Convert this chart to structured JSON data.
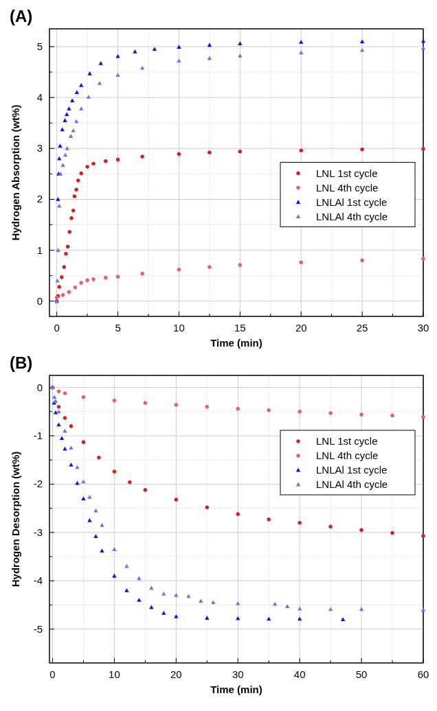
{
  "chart_data": [
    {
      "type": "scatter",
      "title": "(A)",
      "xlabel": "Time (min)",
      "ylabel": "Hydrogen Absorption (wt%)",
      "xlim": [
        -0.6,
        30
      ],
      "ylim": [
        -0.3,
        5.35
      ],
      "xticks": [
        0,
        5,
        10,
        15,
        20,
        25,
        30
      ],
      "yticks": [
        0,
        1,
        2,
        3,
        4,
        5
      ],
      "grid": true,
      "legend": "right",
      "series": [
        {
          "name": "LNL 1st cycle",
          "color": "#d42020",
          "marker": "circle",
          "x": [
            0,
            0.1,
            0.2,
            0.4,
            0.6,
            0.75,
            0.9,
            1.05,
            1.2,
            1.35,
            1.45,
            1.6,
            1.75,
            2,
            2.5,
            3,
            4,
            5,
            7,
            10,
            12.5,
            15,
            20,
            25,
            30
          ],
          "values": [
            0,
            0.1,
            0.28,
            0.47,
            0.67,
            0.93,
            1.07,
            1.36,
            1.63,
            1.78,
            2.06,
            2.19,
            2.37,
            2.51,
            2.64,
            2.7,
            2.75,
            2.78,
            2.84,
            2.89,
            2.92,
            2.94,
            2.96,
            2.98,
            2.99
          ]
        },
        {
          "name": "LNL 4th cycle",
          "color": "#e86060",
          "marker": "circle",
          "x": [
            0,
            0.5,
            1,
            1.5,
            2,
            2.5,
            3,
            4,
            5,
            7,
            10,
            12.5,
            15,
            20,
            25,
            30
          ],
          "values": [
            0.07,
            0.12,
            0.18,
            0.27,
            0.36,
            0.41,
            0.43,
            0.46,
            0.48,
            0.54,
            0.62,
            0.67,
            0.71,
            0.76,
            0.8,
            0.83
          ]
        },
        {
          "name": "LNLAl 1st cycle",
          "color": "#1010e8",
          "marker": "triangle",
          "x": [
            0,
            0.1,
            0.15,
            0.2,
            0.27,
            0.45,
            0.67,
            0.82,
            1,
            1.27,
            1.64,
            2,
            2.7,
            3.6,
            5,
            6.4,
            8,
            10,
            12.5,
            15,
            20,
            25,
            30
          ],
          "values": [
            0,
            2,
            2.5,
            2.8,
            3.05,
            3.37,
            3.55,
            3.67,
            3.78,
            3.94,
            4.1,
            4.24,
            4.47,
            4.67,
            4.81,
            4.9,
            4.95,
            4.99,
            5.03,
            5.06,
            5.09,
            5.1,
            5.11
          ]
        },
        {
          "name": "LNLAl 4th cycle",
          "color": "#7070f0",
          "marker": "triangle",
          "x": [
            0,
            0.05,
            0.1,
            0.2,
            0.3,
            0.5,
            0.7,
            0.85,
            1.15,
            1.35,
            1.6,
            2,
            2.6,
            3.5,
            5,
            7,
            10,
            12.5,
            15,
            20,
            25,
            30
          ],
          "values": [
            0,
            0.4,
            1,
            1.87,
            2.5,
            2.67,
            2.87,
            3,
            3.24,
            3.35,
            3.53,
            3.78,
            4.01,
            4.28,
            4.44,
            4.58,
            4.72,
            4.77,
            4.82,
            4.88,
            4.93,
            4.97
          ]
        }
      ]
    },
    {
      "type": "scatter",
      "title": "(B)",
      "xlabel": "Time (min)",
      "ylabel": "Hydrogen Desorption (wt%)",
      "xlim": [
        -0.5,
        60
      ],
      "ylim": [
        -5.7,
        0.25
      ],
      "xticks": [
        0,
        10,
        20,
        30,
        40,
        50,
        60
      ],
      "yticks": [
        -5,
        -4,
        -3,
        -2,
        -1,
        0
      ],
      "grid": true,
      "legend": "top right",
      "series": [
        {
          "name": "LNL 1st cycle",
          "color": "#d42020",
          "marker": "circle",
          "x": [
            0,
            1,
            2,
            3,
            5,
            7.5,
            10,
            12.5,
            15,
            20,
            25,
            30,
            35,
            40,
            45,
            50,
            55,
            60
          ],
          "values": [
            0,
            -0.4,
            -0.63,
            -0.8,
            -1.13,
            -1.45,
            -1.74,
            -1.96,
            -2.12,
            -2.32,
            -2.48,
            -2.62,
            -2.73,
            -2.8,
            -2.88,
            -2.95,
            -3.01,
            -3.07
          ]
        },
        {
          "name": "LNL 4th cycle",
          "color": "#e86060",
          "marker": "circle",
          "x": [
            0,
            1,
            2,
            5,
            10,
            15,
            20,
            25,
            30,
            35,
            40,
            45,
            50,
            55,
            60
          ],
          "values": [
            0,
            -0.08,
            -0.12,
            -0.2,
            -0.27,
            -0.32,
            -0.36,
            -0.4,
            -0.44,
            -0.47,
            -0.5,
            -0.53,
            -0.56,
            -0.58,
            -0.61
          ]
        },
        {
          "name": "LNLAl 1st cycle",
          "color": "#1010e8",
          "marker": "triangle",
          "x": [
            0,
            0.25,
            0.5,
            1,
            1.5,
            2,
            3,
            4,
            5,
            6,
            7,
            8,
            10,
            12,
            14,
            16,
            18,
            20,
            25,
            30,
            35,
            40,
            47
          ],
          "values": [
            0,
            -0.32,
            -0.52,
            -0.77,
            -1.05,
            -1.27,
            -1.6,
            -1.98,
            -2.3,
            -2.75,
            -3.08,
            -3.38,
            -3.9,
            -4.2,
            -4.4,
            -4.55,
            -4.67,
            -4.74,
            -4.77,
            -4.78,
            -4.79,
            -4.79,
            -4.8
          ]
        },
        {
          "name": "LNLAl 4th cycle",
          "color": "#7070f0",
          "marker": "triangle",
          "x": [
            0,
            0.3,
            0.5,
            1,
            2,
            3,
            4,
            5,
            6,
            7,
            8,
            10,
            12,
            14,
            16,
            18,
            20,
            22,
            24,
            26,
            30,
            36,
            38,
            40,
            45,
            50,
            60
          ],
          "values": [
            0,
            -0.2,
            -0.28,
            -0.5,
            -0.9,
            -1.25,
            -1.65,
            -1.95,
            -2.27,
            -2.55,
            -2.85,
            -3.35,
            -3.7,
            -3.95,
            -4.15,
            -4.27,
            -4.3,
            -4.32,
            -4.42,
            -4.45,
            -4.47,
            -4.48,
            -4.53,
            -4.58,
            -4.59,
            -4.59,
            -4.6
          ]
        }
      ]
    }
  ]
}
